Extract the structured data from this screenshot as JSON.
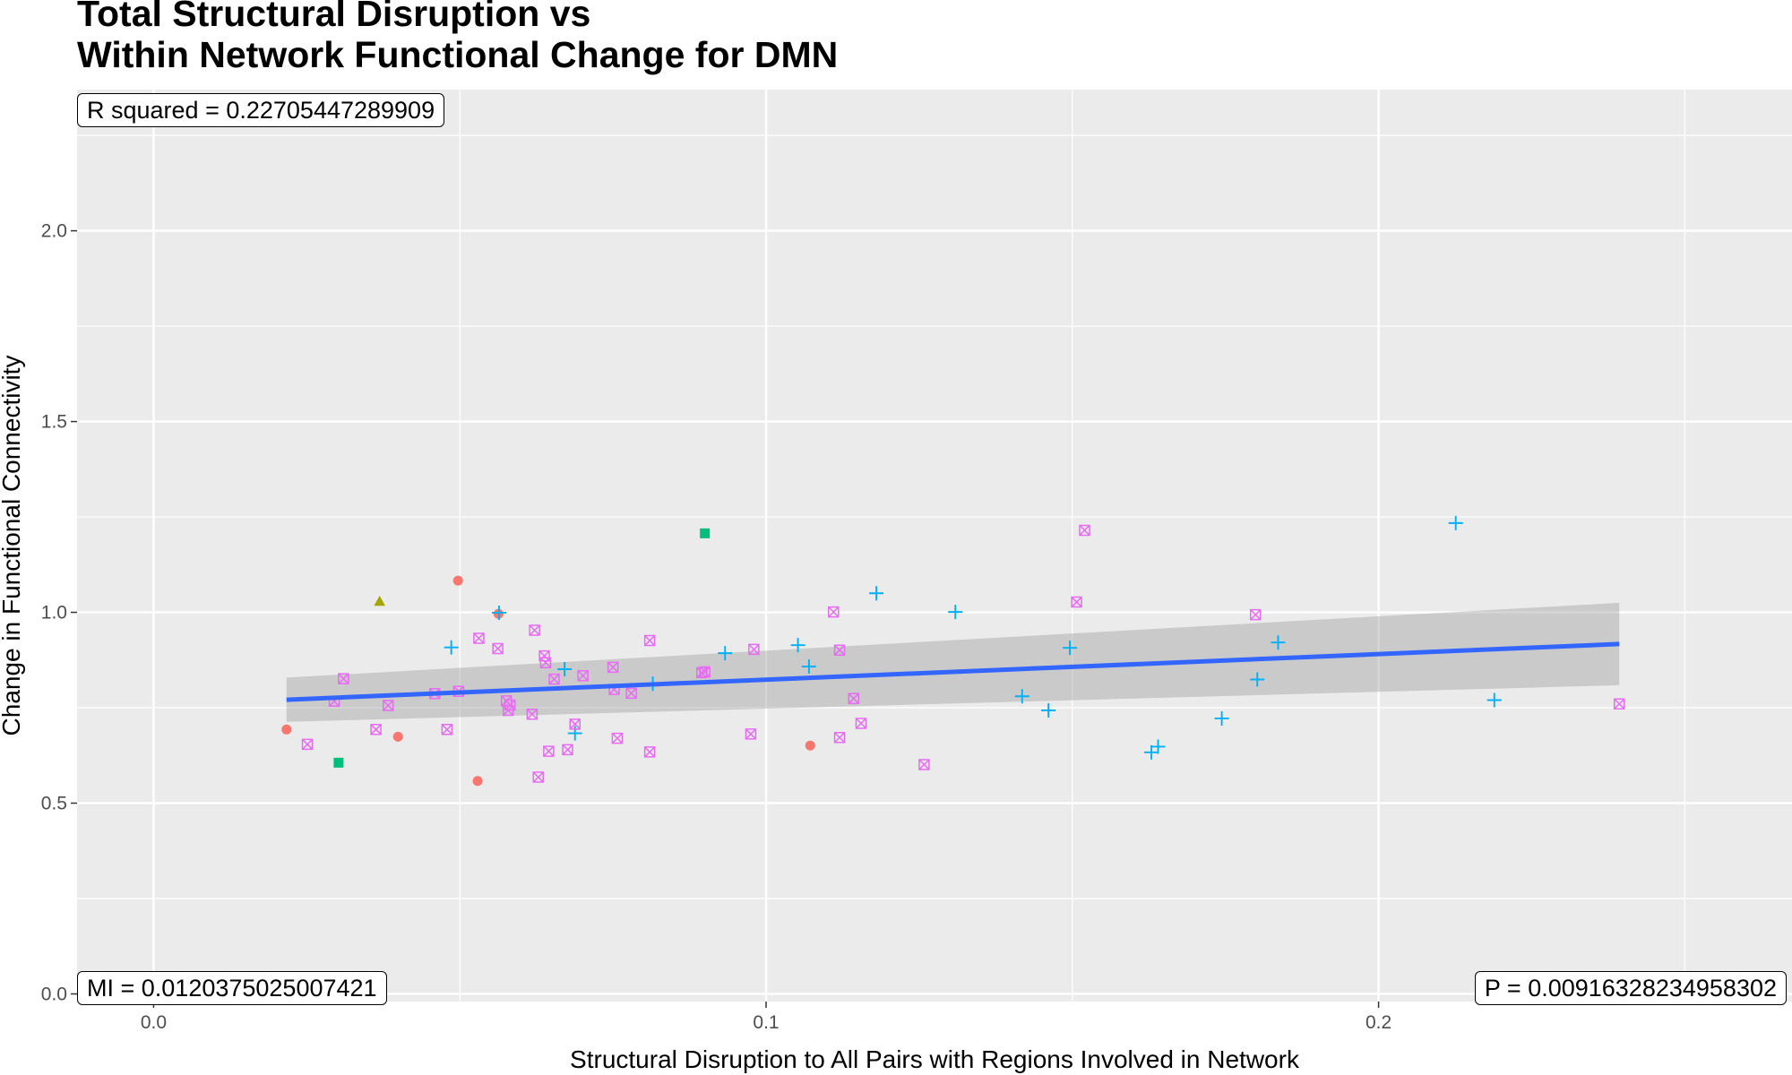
{
  "chart_data": {
    "type": "scatter",
    "title_lines": [
      "Total Structural Disruption vs",
      "Within Network Functional Change for DMN"
    ],
    "xlabel": "Structural Disruption to All Pairs with Regions Involved in Network",
    "ylabel": "Change in Functional Connectivity",
    "xlim": [
      -0.0125,
      0.2675
    ],
    "ylim": [
      -0.02,
      2.37
    ],
    "x_ticks": [
      0.0,
      0.1,
      0.2
    ],
    "x_tick_labels": [
      "0.0",
      "0.1",
      "0.2"
    ],
    "y_ticks": [
      0.0,
      0.5,
      1.0,
      1.5,
      2.0
    ],
    "y_tick_labels": [
      "0.0",
      "0.5",
      "1.0",
      "1.5",
      "2.0"
    ],
    "grid": true,
    "annotations": {
      "r_squared": "R squared =  0.22705447289909",
      "mi": "MI =  0.0120375025007421",
      "p": "P =  0.00916328234958302"
    },
    "fit_line": {
      "x": [
        0.0217,
        0.2393
      ],
      "y": [
        0.771,
        0.917
      ],
      "ci_lower": [
        0.713,
        0.809
      ],
      "ci_upper": [
        0.829,
        1.025
      ],
      "color": "#3366FF",
      "band_color": "#999999"
    },
    "series": [
      {
        "marker": "circle",
        "color": "#F8766D",
        "points": [
          [
            0.0217,
            0.693
          ],
          [
            0.0399,
            0.674
          ],
          [
            0.0497,
            1.083
          ],
          [
            0.0529,
            0.558
          ],
          [
            0.0563,
            0.996
          ],
          [
            0.1072,
            0.651
          ]
        ]
      },
      {
        "marker": "triangle",
        "color": "#A3A500",
        "points": [
          [
            0.0369,
            1.027
          ]
        ]
      },
      {
        "marker": "square",
        "color": "#00BF7D",
        "points": [
          [
            0.0302,
            0.606
          ],
          [
            0.09,
            1.207
          ]
        ]
      },
      {
        "marker": "plus",
        "color": "#00B0F6",
        "points": [
          [
            0.0486,
            0.908
          ],
          [
            0.0564,
            0.999
          ],
          [
            0.0671,
            0.851
          ],
          [
            0.0688,
            0.683
          ],
          [
            0.0815,
            0.813
          ],
          [
            0.0933,
            0.893
          ],
          [
            0.1052,
            0.914
          ],
          [
            0.107,
            0.858
          ],
          [
            0.118,
            1.05
          ],
          [
            0.1309,
            1.001
          ],
          [
            0.1418,
            0.78
          ],
          [
            0.1461,
            0.743
          ],
          [
            0.1496,
            0.907
          ],
          [
            0.1629,
            0.633
          ],
          [
            0.164,
            0.648
          ],
          [
            0.1744,
            0.722
          ],
          [
            0.1802,
            0.824
          ],
          [
            0.1836,
            0.921
          ],
          [
            0.2126,
            1.234
          ],
          [
            0.2189,
            0.77
          ]
        ]
      },
      {
        "marker": "square-cross",
        "color": "#E76BF3",
        "points": [
          [
            0.0251,
            0.654
          ],
          [
            0.0295,
            0.767
          ],
          [
            0.031,
            0.826
          ],
          [
            0.0363,
            0.693
          ],
          [
            0.0383,
            0.756
          ],
          [
            0.0459,
            0.787
          ],
          [
            0.0479,
            0.693
          ],
          [
            0.0498,
            0.793
          ],
          [
            0.0531,
            0.932
          ],
          [
            0.0562,
            0.905
          ],
          [
            0.0576,
            0.768
          ],
          [
            0.0579,
            0.743
          ],
          [
            0.0582,
            0.757
          ],
          [
            0.0618,
            0.733
          ],
          [
            0.0622,
            0.953
          ],
          [
            0.0628,
            0.568
          ],
          [
            0.0638,
            0.886
          ],
          [
            0.064,
            0.868
          ],
          [
            0.0645,
            0.636
          ],
          [
            0.0654,
            0.825
          ],
          [
            0.0676,
            0.64
          ],
          [
            0.0688,
            0.707
          ],
          [
            0.0701,
            0.834
          ],
          [
            0.075,
            0.856
          ],
          [
            0.0752,
            0.798
          ],
          [
            0.0757,
            0.67
          ],
          [
            0.078,
            0.788
          ],
          [
            0.081,
            0.926
          ],
          [
            0.081,
            0.634
          ],
          [
            0.0895,
            0.842
          ],
          [
            0.09,
            0.844
          ],
          [
            0.0975,
            0.681
          ],
          [
            0.098,
            0.903
          ],
          [
            0.111,
            1.001
          ],
          [
            0.112,
            0.901
          ],
          [
            0.112,
            0.672
          ],
          [
            0.1143,
            0.774
          ],
          [
            0.1155,
            0.709
          ],
          [
            0.1258,
            0.601
          ],
          [
            0.1507,
            1.027
          ],
          [
            0.152,
            1.215
          ],
          [
            0.1799,
            0.994
          ],
          [
            0.2393,
            0.76
          ]
        ]
      }
    ]
  }
}
